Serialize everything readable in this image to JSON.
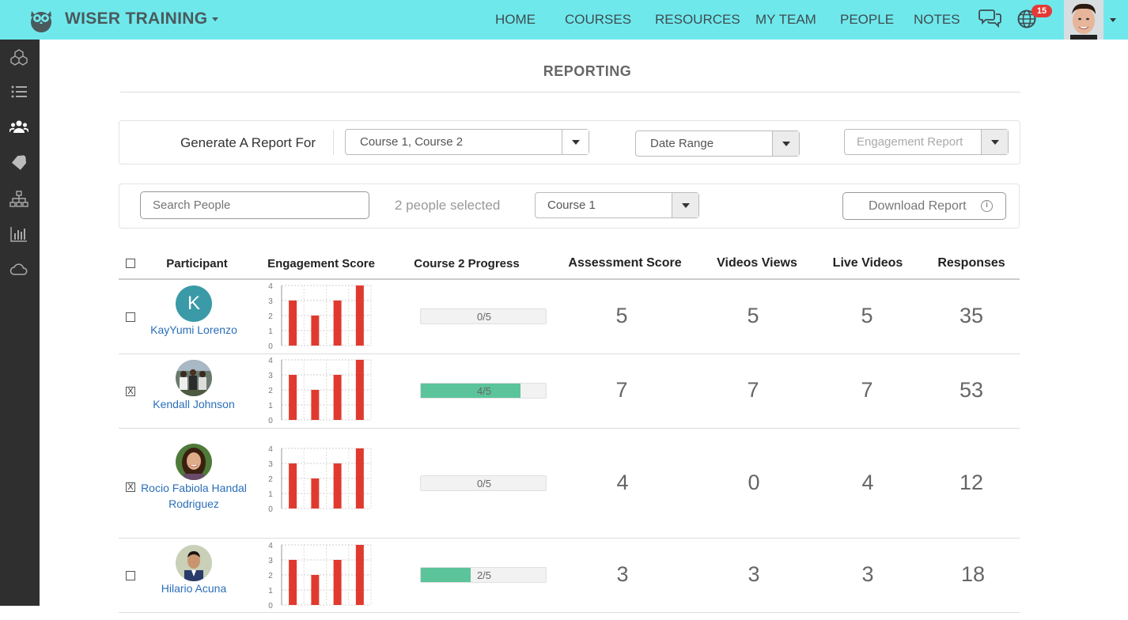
{
  "header": {
    "brand": "WISER TRAINING",
    "nav": [
      "HOME",
      "COURSES",
      "RESOURCES",
      "MY TEAM",
      "PEOPLE",
      "NOTES"
    ],
    "notifications_count": "15",
    "bg_color": "#6fe8ec"
  },
  "sidebar": {
    "icons": [
      "cubes-icon",
      "list-icon",
      "users-icon",
      "tag-icon",
      "sitemap-icon",
      "bar-chart-icon",
      "cloud-icon"
    ]
  },
  "page": {
    "title": "REPORTING"
  },
  "report_bar": {
    "label": "Generate A Report For",
    "courses_value": "Course 1, Course 2",
    "date_placeholder": "Date Range",
    "type_placeholder": "Engagement Report"
  },
  "filter_bar": {
    "search_placeholder": "Search People",
    "selected_text": "2 people selected",
    "course_value": "Course 1",
    "download_label": "Download Report"
  },
  "table": {
    "columns": [
      "Participant",
      "Engagement Score",
      "Course 2 Progress",
      "Assessment Score",
      "Videos Views",
      "Live Videos",
      "Responses"
    ],
    "chart_ticks": [
      "4",
      "3",
      "2",
      "1",
      "0"
    ],
    "rows": [
      {
        "name": "KayYumi Lorenzo",
        "initial": "K",
        "checked": false,
        "checkbox": "",
        "engagement": [
          3,
          2,
          3,
          4
        ],
        "progress": 0,
        "progress_label": "0/5",
        "assessment": "5",
        "videos": "5",
        "live": "5",
        "responses": "35"
      },
      {
        "name": "Kendall Johnson",
        "initial": "",
        "checked": true,
        "checkbox": "X",
        "engagement": [
          3,
          2,
          3,
          4
        ],
        "progress": 0.8,
        "progress_label": "4/5",
        "assessment": "7",
        "videos": "7",
        "live": "7",
        "responses": "53"
      },
      {
        "name": "Rocio Fabiola Handal Rodriguez",
        "initial": "",
        "checked": true,
        "checkbox": "X",
        "engagement": [
          3,
          2,
          3,
          4
        ],
        "progress": 0,
        "progress_label": "0/5",
        "assessment": "4",
        "videos": "0",
        "live": "4",
        "responses": "12"
      },
      {
        "name": "Hilario Acuna",
        "initial": "",
        "checked": false,
        "checkbox": "",
        "engagement": [
          3,
          2,
          3,
          4
        ],
        "progress": 0.4,
        "progress_label": "2/5",
        "assessment": "3",
        "videos": "3",
        "live": "3",
        "responses": "18"
      }
    ]
  }
}
